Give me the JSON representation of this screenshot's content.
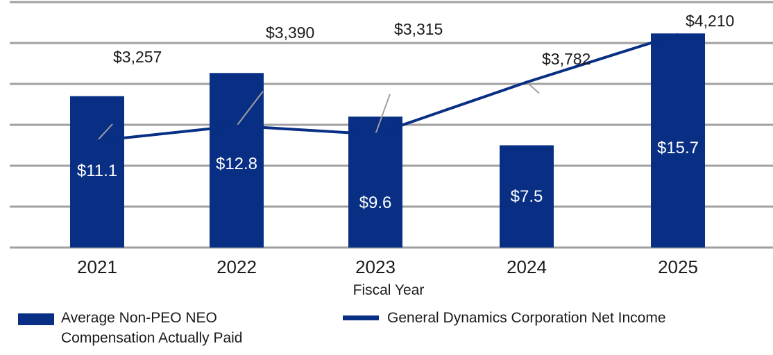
{
  "colors": {
    "bar": "#082f84",
    "line": "#082f84",
    "grid": "#a0a0a0",
    "leader": "#a0a0a0"
  },
  "chart_data": {
    "type": "bar+line",
    "title": "",
    "xlabel": "Fiscal Year",
    "ylabel": "",
    "categories": [
      "2021",
      "2022",
      "2023",
      "2024",
      "2025"
    ],
    "series": [
      {
        "name": "Average Non-PEO NEO Compensation Actually Paid",
        "type": "bar",
        "values": [
          11.1,
          12.8,
          9.6,
          7.5,
          15.7
        ],
        "labels": [
          "$11.1",
          "$12.8",
          "$9.6",
          "$7.5",
          "$15.7"
        ],
        "axis_range": [
          0,
          18
        ]
      },
      {
        "name": "General Dynamics Corporation Net Income",
        "type": "line",
        "values": [
          3257,
          3390,
          3315,
          3782,
          4210
        ],
        "labels": [
          "$3,257",
          "$3,390",
          "$3,315",
          "$3,782",
          "$4,210"
        ],
        "axis_range": [
          2300,
          4500
        ]
      }
    ],
    "grid": true,
    "gridlines": 7,
    "legend_position": "bottom"
  },
  "legend": {
    "bar_label_line1": "Average Non-PEO NEO",
    "bar_label_line2": "Compensation Actually Paid",
    "line_label": "General Dynamics Corporation Net Income"
  }
}
